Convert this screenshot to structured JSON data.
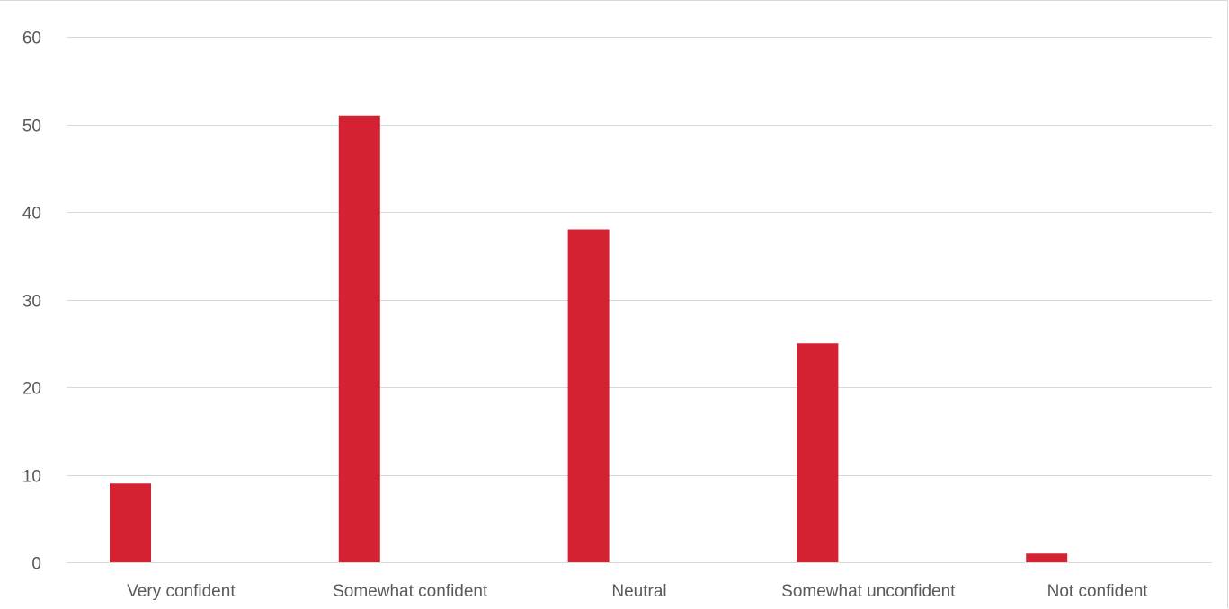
{
  "chart_data": {
    "type": "bar",
    "categories": [
      "Very confident",
      "Somewhat confident",
      "Neutral",
      "Somewhat unconfident",
      "Not confident"
    ],
    "values": [
      9,
      51,
      38,
      25,
      1
    ],
    "ylim": [
      0,
      60
    ],
    "yticks": [
      0,
      10,
      20,
      30,
      40,
      50,
      60
    ],
    "grid": true,
    "colors": {
      "bar": "#d42232",
      "grid": "#d9d9d9",
      "text": "#595959"
    }
  }
}
